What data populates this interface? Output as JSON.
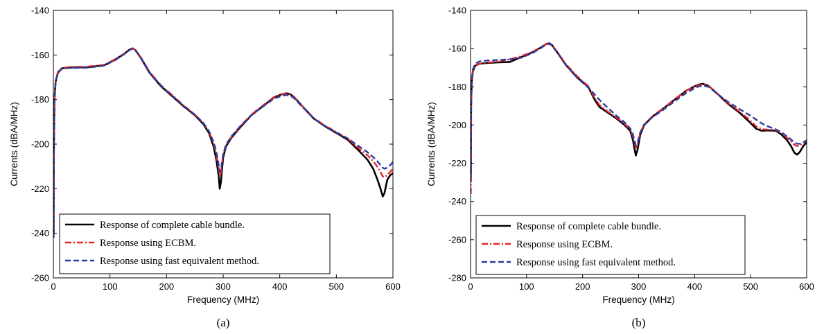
{
  "chart_data": [
    {
      "type": "line",
      "caption": "(a)",
      "xlabel": "Frequency (MHz)",
      "ylabel": "Currents (dBA/MHz)",
      "xlim": [
        0,
        600
      ],
      "ylim": [
        -260,
        -140
      ],
      "xticks": [
        0,
        100,
        200,
        300,
        400,
        500,
        600
      ],
      "yticks": [
        -260,
        -240,
        -220,
        -200,
        -180,
        -160,
        -140
      ],
      "grid": false,
      "legend_position": "bottom-left",
      "series": [
        {
          "name": "Response of complete cable bundle.",
          "color": "#000000",
          "dash": "solid",
          "x": [
            0.5,
            1,
            2,
            4,
            8,
            15,
            30,
            60,
            90,
            110,
            125,
            135,
            140,
            145,
            155,
            170,
            190,
            210,
            230,
            250,
            265,
            275,
            283,
            288,
            292,
            294,
            296,
            300,
            305,
            315,
            330,
            350,
            370,
            390,
            405,
            412,
            418,
            425,
            440,
            460,
            480,
            500,
            520,
            540,
            555,
            565,
            572,
            578,
            582,
            585,
            590,
            595,
            600
          ],
          "y": [
            -240,
            -200,
            -180,
            -172,
            -168,
            -166,
            -165.6,
            -165.5,
            -164.6,
            -162,
            -159.5,
            -157.5,
            -157,
            -157.8,
            -161.5,
            -168,
            -174,
            -178.5,
            -183,
            -187,
            -191,
            -195,
            -201,
            -207,
            -214,
            -220,
            -217,
            -206,
            -201,
            -197,
            -192.5,
            -187,
            -183,
            -179,
            -177.5,
            -177.2,
            -177.5,
            -178.8,
            -183,
            -188.5,
            -192,
            -195,
            -198,
            -203,
            -207,
            -211,
            -215.5,
            -220,
            -223.5,
            -222,
            -216,
            -214,
            -213
          ]
        },
        {
          "name": "Response using ECBM.",
          "color": "#e8232a",
          "dash": "dashdot",
          "x": [
            0.5,
            1,
            2,
            4,
            8,
            15,
            30,
            60,
            90,
            110,
            125,
            135,
            140,
            145,
            155,
            170,
            190,
            210,
            230,
            250,
            265,
            275,
            283,
            288,
            292,
            294,
            296,
            300,
            305,
            315,
            330,
            350,
            370,
            390,
            405,
            412,
            418,
            425,
            440,
            460,
            480,
            500,
            520,
            540,
            555,
            565,
            572,
            578,
            582,
            585,
            590,
            595,
            600
          ],
          "y": [
            -238,
            -199,
            -179,
            -171.5,
            -167.6,
            -165.8,
            -165.4,
            -165.2,
            -164.4,
            -161.8,
            -159.4,
            -157.5,
            -157,
            -157.8,
            -161.2,
            -167.6,
            -173.6,
            -178,
            -182.6,
            -186.7,
            -190.6,
            -194.4,
            -199.6,
            -204.8,
            -210.5,
            -214.5,
            -213,
            -205,
            -200.5,
            -196.6,
            -192.1,
            -186.7,
            -182.7,
            -178.8,
            -177.6,
            -177.4,
            -177.7,
            -178.9,
            -183,
            -188.3,
            -191.7,
            -194.6,
            -197.5,
            -202,
            -205,
            -207.6,
            -210,
            -212.5,
            -214.5,
            -214.8,
            -214,
            -212.5,
            -211
          ]
        },
        {
          "name": "Response using fast equivalent method.",
          "color": "#2b3aa0",
          "dash": "dashed",
          "x": [
            0.5,
            1,
            2,
            4,
            8,
            15,
            30,
            60,
            90,
            110,
            125,
            135,
            140,
            145,
            155,
            170,
            190,
            210,
            230,
            250,
            265,
            275,
            283,
            288,
            292,
            294,
            296,
            300,
            305,
            315,
            330,
            350,
            370,
            390,
            405,
            412,
            418,
            425,
            440,
            460,
            480,
            500,
            520,
            540,
            555,
            565,
            572,
            578,
            582,
            585,
            590,
            595,
            600
          ],
          "y": [
            -242,
            -201,
            -180,
            -172,
            -168,
            -166.2,
            -165.8,
            -165.7,
            -164.8,
            -162.2,
            -159.7,
            -157.7,
            -157.2,
            -158,
            -161.4,
            -167.8,
            -173.8,
            -178.3,
            -182.8,
            -186.8,
            -190.5,
            -194.2,
            -199,
            -203.5,
            -209,
            -212.5,
            -211.5,
            -204.5,
            -200.2,
            -196.4,
            -192,
            -187,
            -183.2,
            -179.5,
            -178.3,
            -178,
            -178.2,
            -179.3,
            -183.3,
            -188.5,
            -191.9,
            -194.8,
            -197.4,
            -201,
            -203.6,
            -205.8,
            -207.6,
            -209.4,
            -210.6,
            -211,
            -210.6,
            -209.5,
            -208
          ]
        }
      ]
    },
    {
      "type": "line",
      "caption": "(b)",
      "xlabel": "Frequency (MHz)",
      "ylabel": "Currents (dBA/MHz)",
      "xlim": [
        0,
        600
      ],
      "ylim": [
        -280,
        -140
      ],
      "xticks": [
        0,
        100,
        200,
        300,
        400,
        500,
        600
      ],
      "yticks": [
        -280,
        -260,
        -240,
        -220,
        -200,
        -180,
        -160,
        -140
      ],
      "grid": false,
      "legend_position": "bottom-left",
      "series": [
        {
          "name": "Response of complete cable bundle.",
          "color": "#000000",
          "dash": "solid",
          "x": [
            0.5,
            1,
            2,
            4,
            8,
            15,
            30,
            50,
            70,
            90,
            110,
            125,
            135,
            140,
            145,
            155,
            170,
            190,
            210,
            222,
            230,
            245,
            260,
            275,
            285,
            290,
            293,
            295,
            298,
            303,
            310,
            325,
            345,
            365,
            385,
            405,
            414,
            425,
            440,
            460,
            480,
            500,
            510,
            520,
            530,
            545,
            555,
            565,
            572,
            578,
            583,
            588,
            594,
            600
          ],
          "y": [
            -230,
            -190,
            -178,
            -172,
            -169,
            -168,
            -167.5,
            -167.2,
            -167,
            -164.5,
            -162,
            -159.5,
            -157.6,
            -157.2,
            -158,
            -162,
            -168.5,
            -175,
            -180,
            -187,
            -190.5,
            -193.5,
            -196.5,
            -200,
            -203,
            -208,
            -213,
            -216,
            -213,
            -205,
            -200,
            -195.5,
            -191.2,
            -186.5,
            -182,
            -179,
            -178.4,
            -179.5,
            -183.5,
            -189,
            -193.5,
            -199,
            -202,
            -203,
            -202.8,
            -203,
            -205,
            -208,
            -211,
            -214.5,
            -215.5,
            -214,
            -211,
            -209
          ]
        },
        {
          "name": "Response using ECBM.",
          "color": "#e8232a",
          "dash": "dashdot",
          "x": [
            0.5,
            1,
            2,
            4,
            8,
            15,
            30,
            50,
            70,
            90,
            110,
            125,
            135,
            140,
            145,
            155,
            170,
            190,
            210,
            222,
            230,
            245,
            260,
            275,
            285,
            290,
            293,
            295,
            298,
            303,
            310,
            325,
            345,
            365,
            385,
            405,
            414,
            425,
            440,
            460,
            480,
            500,
            510,
            520,
            530,
            545,
            555,
            565,
            572,
            578,
            583,
            588,
            594,
            600
          ],
          "y": [
            -236,
            -193,
            -179,
            -172.4,
            -169.2,
            -168,
            -167.3,
            -166.8,
            -165.6,
            -164,
            -161.8,
            -159.3,
            -157.6,
            -157.2,
            -158,
            -161.8,
            -168,
            -174.4,
            -179.6,
            -186,
            -189.5,
            -193,
            -196,
            -199.3,
            -202.4,
            -206.2,
            -209.8,
            -212,
            -210.2,
            -204,
            -199.6,
            -195.3,
            -191,
            -186.3,
            -182,
            -179.2,
            -178.7,
            -179.6,
            -183.4,
            -188.6,
            -192.9,
            -197.8,
            -200.8,
            -202.2,
            -202.4,
            -202.6,
            -204.2,
            -206.6,
            -208.6,
            -210.3,
            -211,
            -210.6,
            -209.4,
            -208
          ]
        },
        {
          "name": "Response using fast equivalent method.",
          "color": "#2b3aa0",
          "dash": "dashed",
          "x": [
            0.5,
            1,
            2,
            4,
            8,
            15,
            30,
            50,
            70,
            90,
            110,
            125,
            135,
            140,
            145,
            155,
            170,
            190,
            210,
            222,
            230,
            245,
            260,
            275,
            285,
            290,
            293,
            295,
            298,
            303,
            310,
            325,
            345,
            365,
            385,
            405,
            414,
            425,
            440,
            460,
            480,
            500,
            510,
            520,
            530,
            545,
            555,
            565,
            572,
            578,
            583,
            588,
            594,
            600
          ],
          "y": [
            -228,
            -189,
            -177,
            -171,
            -168,
            -166.8,
            -166.2,
            -166,
            -165.6,
            -164.8,
            -162.4,
            -159.8,
            -157.9,
            -157.5,
            -158.3,
            -162.2,
            -168.6,
            -175.2,
            -180.4,
            -184.2,
            -186.8,
            -191,
            -195,
            -198.6,
            -201.8,
            -205,
            -208.6,
            -210.6,
            -209.4,
            -203.8,
            -199.8,
            -195.8,
            -191.8,
            -187.4,
            -183.2,
            -180,
            -179.3,
            -180,
            -183.6,
            -188,
            -191.6,
            -195.2,
            -197.2,
            -199.2,
            -200.6,
            -202.3,
            -203.8,
            -206,
            -207.6,
            -209,
            -209.8,
            -209.8,
            -209,
            -208
          ]
        }
      ]
    }
  ]
}
